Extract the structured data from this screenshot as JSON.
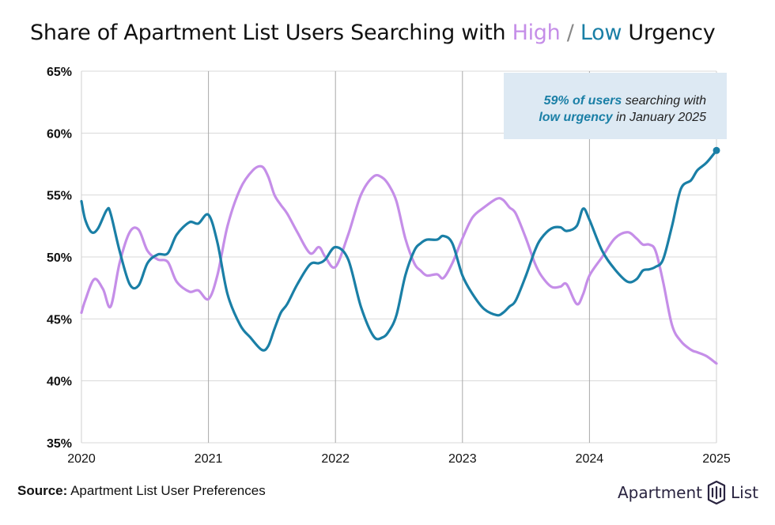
{
  "title": {
    "prefix": "Share of Apartment List Users Searching with",
    "high": "High",
    "separator": "/",
    "low": "Low",
    "suffix": "Urgency"
  },
  "annotation": {
    "line1_em": "59% of users",
    "line1_rest": " searching with",
    "line2_em": "low urgency",
    "line2_rest": " in January 2025"
  },
  "source": {
    "label": "Source:",
    "text": "Apartment List User Preferences"
  },
  "logo": {
    "left": "Apartment",
    "right": "List"
  },
  "colors": {
    "high": "#c58ee8",
    "low": "#1a7fa6",
    "annotation_bg": "#dde9f3",
    "grid": "#d9d9d9"
  },
  "chart_data": {
    "type": "line",
    "title": "Share of Apartment List Users Searching with High / Low Urgency",
    "xlabel": "",
    "ylabel": "",
    "ylim": [
      35,
      65
    ],
    "xlim": [
      2020,
      2025
    ],
    "yticks": [
      "35%",
      "40%",
      "45%",
      "50%",
      "55%",
      "60%",
      "65%"
    ],
    "xticks": [
      "2020",
      "2021",
      "2022",
      "2023",
      "2024",
      "2025"
    ],
    "grid": true,
    "series": [
      {
        "name": "High",
        "color": "#c58ee8",
        "x": [
          2020.0,
          2020.03,
          2020.1,
          2020.17,
          2020.23,
          2020.3,
          2020.38,
          2020.45,
          2020.52,
          2020.6,
          2020.68,
          2020.75,
          2020.85,
          2020.92,
          2021.0,
          2021.07,
          2021.15,
          2021.25,
          2021.35,
          2021.42,
          2021.47,
          2021.52,
          2021.57,
          2021.62,
          2021.7,
          2021.8,
          2021.87,
          2021.92,
          2022.0,
          2022.1,
          2022.2,
          2022.3,
          2022.37,
          2022.42,
          2022.48,
          2022.55,
          2022.62,
          2022.67,
          2022.72,
          2022.8,
          2022.85,
          2022.92,
          2023.0,
          2023.08,
          2023.17,
          2023.27,
          2023.32,
          2023.37,
          2023.42,
          2023.5,
          2023.57,
          2023.62,
          2023.7,
          2023.77,
          2023.82,
          2023.9,
          2023.95,
          2024.0,
          2024.1,
          2024.2,
          2024.3,
          2024.37,
          2024.42,
          2024.47,
          2024.52,
          2024.58,
          2024.65,
          2024.72,
          2024.8,
          2024.85,
          2024.92,
          2025.0
        ],
        "values": [
          45.5,
          46.5,
          48.2,
          47.4,
          46.0,
          49.5,
          52.0,
          52.2,
          50.5,
          49.8,
          49.6,
          48.0,
          47.2,
          47.3,
          46.6,
          48.5,
          52.5,
          55.5,
          57.0,
          57.3,
          56.5,
          55.0,
          54.2,
          53.5,
          52.0,
          50.3,
          50.8,
          50.0,
          49.2,
          51.8,
          55.0,
          56.5,
          56.4,
          55.8,
          54.5,
          51.5,
          49.5,
          48.9,
          48.5,
          48.6,
          48.3,
          49.5,
          51.5,
          53.2,
          54.0,
          54.7,
          54.6,
          54.0,
          53.5,
          51.5,
          49.5,
          48.5,
          47.6,
          47.6,
          47.8,
          46.2,
          47.0,
          48.5,
          50.0,
          51.5,
          52.0,
          51.5,
          51.0,
          51.0,
          50.5,
          48.0,
          44.5,
          43.2,
          42.5,
          42.3,
          42.0,
          41.4
        ]
      },
      {
        "name": "Low",
        "color": "#1a7fa6",
        "x": [
          2020.0,
          2020.03,
          2020.08,
          2020.13,
          2020.2,
          2020.23,
          2020.3,
          2020.38,
          2020.45,
          2020.52,
          2020.6,
          2020.68,
          2020.75,
          2020.85,
          2020.92,
          2021.0,
          2021.07,
          2021.15,
          2021.25,
          2021.33,
          2021.42,
          2021.47,
          2021.52,
          2021.57,
          2021.62,
          2021.7,
          2021.8,
          2021.87,
          2021.92,
          2022.0,
          2022.1,
          2022.2,
          2022.3,
          2022.37,
          2022.42,
          2022.48,
          2022.55,
          2022.62,
          2022.67,
          2022.72,
          2022.8,
          2022.85,
          2022.92,
          2023.0,
          2023.08,
          2023.17,
          2023.27,
          2023.32,
          2023.37,
          2023.42,
          2023.5,
          2023.57,
          2023.62,
          2023.7,
          2023.77,
          2023.82,
          2023.9,
          2023.95,
          2024.0,
          2024.1,
          2024.2,
          2024.3,
          2024.37,
          2024.42,
          2024.47,
          2024.52,
          2024.58,
          2024.65,
          2024.72,
          2024.8,
          2024.85,
          2024.92,
          2025.0
        ],
        "values": [
          54.5,
          53.0,
          52.0,
          52.3,
          53.8,
          53.5,
          50.5,
          47.8,
          47.7,
          49.5,
          50.2,
          50.3,
          51.8,
          52.8,
          52.7,
          53.4,
          51.2,
          47.0,
          44.5,
          43.5,
          42.5,
          42.8,
          44.2,
          45.5,
          46.2,
          47.8,
          49.4,
          49.5,
          49.8,
          50.8,
          49.8,
          46.0,
          43.6,
          43.5,
          44.0,
          45.3,
          48.5,
          50.5,
          51.1,
          51.4,
          51.4,
          51.7,
          51.1,
          48.5,
          47.0,
          45.8,
          45.3,
          45.5,
          46.0,
          46.5,
          48.5,
          50.5,
          51.5,
          52.3,
          52.4,
          52.1,
          52.5,
          53.9,
          53.0,
          50.5,
          49.0,
          48.0,
          48.2,
          48.9,
          49.0,
          49.2,
          49.8,
          52.5,
          55.5,
          56.2,
          57.0,
          57.6,
          58.6
        ]
      }
    ]
  }
}
